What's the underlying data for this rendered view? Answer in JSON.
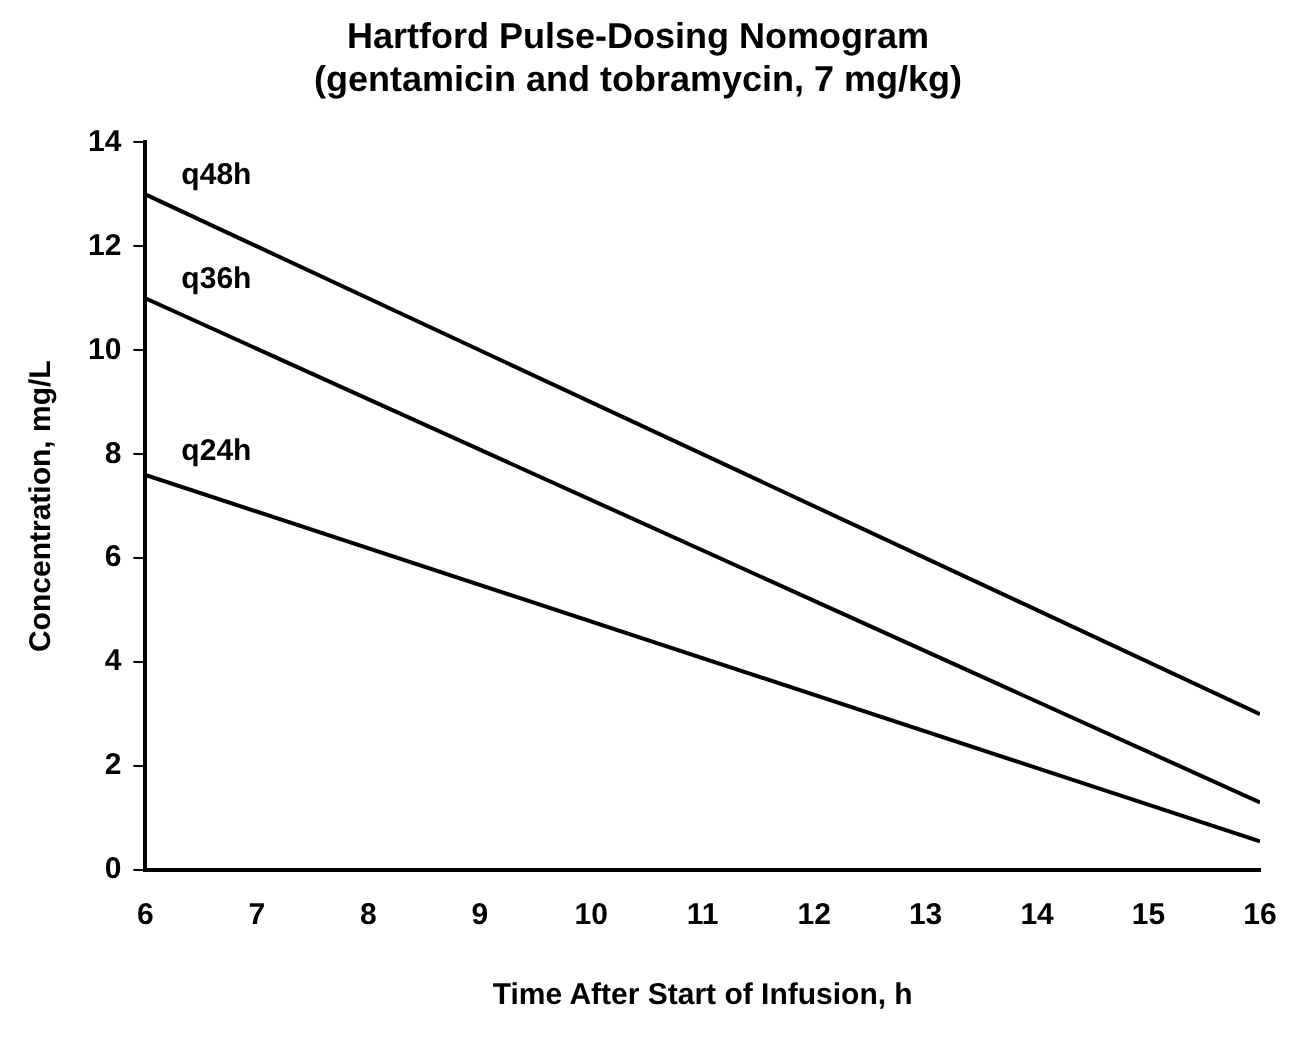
{
  "chart_data": {
    "type": "line",
    "title": "Hartford Pulse-Dosing Nomogram",
    "subtitle": "(gentamicin and tobramycin, 7 mg/kg)",
    "xlabel": "Time After Start of Infusion, h",
    "ylabel": "Concentration, mg/L",
    "x": [
      6,
      16
    ],
    "series": [
      {
        "name": "q48h",
        "color": "#000000",
        "values": [
          13,
          3
        ]
      },
      {
        "name": "q36h",
        "color": "#000000",
        "values": [
          11,
          1.3
        ]
      },
      {
        "name": "q24h",
        "color": "#000000",
        "values": [
          7.6,
          0.55
        ]
      }
    ],
    "xlim": [
      6,
      16
    ],
    "xticks": [
      6,
      7,
      8,
      9,
      10,
      11,
      12,
      13,
      14,
      15,
      16
    ],
    "ylim": [
      0,
      14
    ],
    "yticks": [
      0,
      2,
      4,
      6,
      8,
      10,
      12,
      14
    ],
    "grid": false,
    "legend": false,
    "marker": "none",
    "line_style": "solid"
  }
}
